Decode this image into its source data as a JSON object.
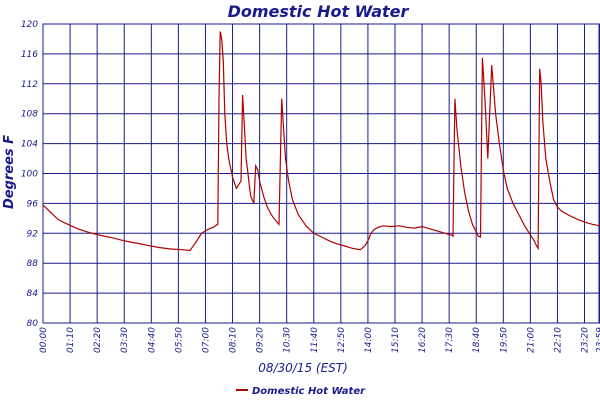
{
  "chart_data": {
    "type": "line",
    "title": "Domestic Hot Water",
    "xlabel": "08/30/15 (EST)",
    "ylabel": "Degrees F",
    "ylim": [
      80,
      120
    ],
    "yticks": [
      80,
      84,
      88,
      92,
      96,
      100,
      104,
      108,
      112,
      116,
      120
    ],
    "xticks": [
      "00:00",
      "01:10",
      "02:20",
      "03:30",
      "04:40",
      "05:50",
      "07:00",
      "08:10",
      "09:20",
      "10:30",
      "11:40",
      "12:50",
      "14:00",
      "15:10",
      "16:20",
      "17:30",
      "18:40",
      "19:50",
      "21:00",
      "22:10",
      "23:20",
      "23:59"
    ],
    "xtick_minutes": [
      0,
      70,
      140,
      210,
      280,
      350,
      420,
      490,
      560,
      630,
      700,
      770,
      840,
      910,
      980,
      1050,
      1120,
      1190,
      1260,
      1330,
      1400,
      1439
    ],
    "xlim": [
      0,
      1440
    ],
    "grid": true,
    "legend_position": "bottom",
    "series": [
      {
        "name": "Domestic Hot Water",
        "color": "#b00000",
        "x": [
          0,
          20,
          40,
          60,
          90,
          120,
          150,
          180,
          210,
          240,
          270,
          300,
          330,
          360,
          380,
          395,
          410,
          425,
          440,
          452,
          455,
          458,
          462,
          466,
          470,
          475,
          480,
          490,
          500,
          512,
          516,
          520,
          525,
          530,
          533,
          537,
          541,
          545,
          550,
          555,
          560,
          570,
          580,
          590,
          600,
          605,
          610,
          617,
          622,
          627,
          635,
          645,
          660,
          680,
          700,
          720,
          740,
          760,
          780,
          800,
          820,
          832,
          840,
          848,
          856,
          866,
          880,
          900,
          920,
          940,
          960,
          980,
          1000,
          1020,
          1040,
          1052,
          1056,
          1060,
          1065,
          1070,
          1080,
          1090,
          1100,
          1110,
          1120,
          1126,
          1131,
          1136,
          1140,
          1144,
          1150,
          1160,
          1170,
          1180,
          1190,
          1200,
          1215,
          1230,
          1245,
          1260,
          1270,
          1276,
          1280,
          1284,
          1288,
          1292,
          1300,
          1310,
          1320,
          1330,
          1340,
          1360,
          1380,
          1400,
          1420,
          1439
        ],
        "y": [
          95.8,
          94.8,
          93.8,
          93.3,
          92.6,
          92.1,
          91.7,
          91.4,
          91.0,
          90.7,
          90.4,
          90.1,
          89.9,
          89.8,
          89.7,
          90.8,
          92.0,
          92.5,
          92.8,
          93.2,
          110.0,
          119.0,
          118.0,
          115.0,
          108.0,
          104.0,
          102.0,
          99.5,
          98.0,
          99.0,
          110.5,
          107.0,
          102.0,
          100.0,
          98.5,
          97.0,
          96.5,
          96.0,
          101.0,
          100.5,
          99.0,
          97.0,
          95.5,
          94.5,
          93.8,
          93.5,
          93.2,
          110.0,
          106.0,
          102.0,
          99.0,
          96.5,
          94.5,
          93.0,
          92.0,
          91.5,
          91.0,
          90.6,
          90.3,
          90.0,
          89.8,
          90.3,
          91.0,
          92.0,
          92.5,
          92.8,
          93.0,
          92.9,
          93.0,
          92.8,
          92.7,
          92.9,
          92.6,
          92.3,
          92.0,
          91.8,
          91.8,
          91.6,
          110.0,
          106.0,
          101.0,
          97.5,
          95.0,
          93.2,
          92.2,
          91.6,
          91.5,
          115.5,
          112.0,
          108.5,
          102.0,
          114.5,
          108.0,
          104.0,
          100.5,
          98.0,
          96.0,
          94.5,
          93.0,
          91.8,
          91.0,
          90.3,
          90.0,
          114.0,
          112.0,
          107.0,
          102.0,
          99.0,
          96.5,
          95.5,
          95.0,
          94.4,
          93.9,
          93.5,
          93.2,
          93.0
        ]
      }
    ]
  }
}
